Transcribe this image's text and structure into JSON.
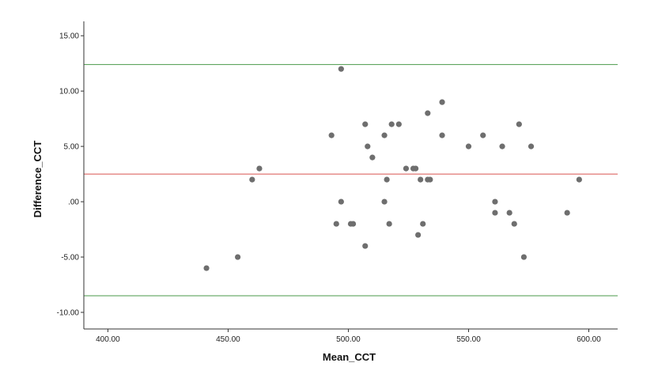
{
  "chart_data": {
    "type": "scatter",
    "title": "",
    "xlabel": "Mean_CCT",
    "ylabel": "Difference_CCT",
    "xlim": [
      390,
      612
    ],
    "ylim": [
      -11.5,
      16.3
    ],
    "x_ticks": [
      400,
      450,
      500,
      550,
      600
    ],
    "x_tick_labels": [
      "400.00",
      "450.00",
      "500.00",
      "550.00",
      "600.00"
    ],
    "y_ticks": [
      15,
      10,
      5,
      0,
      -5,
      -10
    ],
    "y_tick_labels": [
      "15.00",
      "10.00",
      "5.00",
      ".00",
      "-5.00",
      "-10.00"
    ],
    "grid": false,
    "legend": "none",
    "reference_lines": [
      {
        "name": "upper-loa",
        "y": 12.4,
        "color": "#4a9a4a"
      },
      {
        "name": "mean-difference",
        "y": 2.5,
        "color": "#d9534f"
      },
      {
        "name": "lower-loa",
        "y": -8.5,
        "color": "#4a9a4a"
      }
    ],
    "point_color": "#6e6e6e",
    "points": [
      {
        "x": 441,
        "y": -6
      },
      {
        "x": 454,
        "y": -5
      },
      {
        "x": 460,
        "y": 2
      },
      {
        "x": 463,
        "y": 3
      },
      {
        "x": 493,
        "y": 6
      },
      {
        "x": 495,
        "y": -2
      },
      {
        "x": 497,
        "y": 12
      },
      {
        "x": 497,
        "y": 0
      },
      {
        "x": 501,
        "y": -2
      },
      {
        "x": 502,
        "y": -2
      },
      {
        "x": 507,
        "y": 7
      },
      {
        "x": 507,
        "y": -4
      },
      {
        "x": 508,
        "y": 5
      },
      {
        "x": 510,
        "y": 4
      },
      {
        "x": 515,
        "y": 6
      },
      {
        "x": 515,
        "y": 0
      },
      {
        "x": 516,
        "y": 2
      },
      {
        "x": 517,
        "y": -2
      },
      {
        "x": 518,
        "y": 7
      },
      {
        "x": 521,
        "y": 7
      },
      {
        "x": 524,
        "y": 3
      },
      {
        "x": 527,
        "y": 3
      },
      {
        "x": 528,
        "y": 3
      },
      {
        "x": 529,
        "y": -3
      },
      {
        "x": 530,
        "y": 2
      },
      {
        "x": 531,
        "y": -2
      },
      {
        "x": 533,
        "y": 8
      },
      {
        "x": 533,
        "y": 2
      },
      {
        "x": 534,
        "y": 2
      },
      {
        "x": 539,
        "y": 9
      },
      {
        "x": 539,
        "y": 6
      },
      {
        "x": 550,
        "y": 5
      },
      {
        "x": 556,
        "y": 6
      },
      {
        "x": 561,
        "y": -1
      },
      {
        "x": 561,
        "y": 0
      },
      {
        "x": 564,
        "y": 5
      },
      {
        "x": 567,
        "y": -1
      },
      {
        "x": 569,
        "y": -2
      },
      {
        "x": 571,
        "y": 7
      },
      {
        "x": 573,
        "y": -5
      },
      {
        "x": 576,
        "y": 5
      },
      {
        "x": 591,
        "y": -1
      },
      {
        "x": 596,
        "y": 2
      }
    ]
  }
}
